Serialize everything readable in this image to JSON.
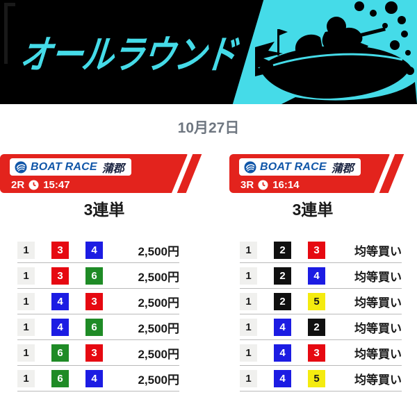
{
  "header": {
    "title": "オールラウンド",
    "accent_color": "#45dbe8",
    "bg_color": "#000000"
  },
  "date_label": "10月27日",
  "theme": {
    "banner_red": "#e3231d",
    "logo_blue": "#1056a8",
    "date_color": "#6e7680",
    "divider_color": "#b9b9b9"
  },
  "boat_colors": {
    "1": {
      "bg": "#f0f0ee",
      "fg": "#1a1a1a"
    },
    "2": {
      "bg": "#101010",
      "fg": "#ffffff"
    },
    "3": {
      "bg": "#e60911",
      "fg": "#ffffff"
    },
    "4": {
      "bg": "#1c1ce3",
      "fg": "#ffffff"
    },
    "5": {
      "bg": "#f4eb0f",
      "fg": "#1a1a1a"
    },
    "6": {
      "bg": "#1f8b26",
      "fg": "#ffffff"
    }
  },
  "races": [
    {
      "logo": {
        "brand": "BOAT RACE",
        "venue": "蒲郡"
      },
      "race_no": "2R",
      "time": "15:47",
      "bet_type": "3連単",
      "rows": [
        {
          "combo": [
            "1",
            "3",
            "4"
          ],
          "label": "2,500円"
        },
        {
          "combo": [
            "1",
            "3",
            "6"
          ],
          "label": "2,500円"
        },
        {
          "combo": [
            "1",
            "4",
            "3"
          ],
          "label": "2,500円"
        },
        {
          "combo": [
            "1",
            "4",
            "6"
          ],
          "label": "2,500円"
        },
        {
          "combo": [
            "1",
            "6",
            "3"
          ],
          "label": "2,500円"
        },
        {
          "combo": [
            "1",
            "6",
            "4"
          ],
          "label": "2,500円"
        }
      ]
    },
    {
      "logo": {
        "brand": "BOAT RACE",
        "venue": "蒲郡"
      },
      "race_no": "3R",
      "time": "16:14",
      "bet_type": "3連単",
      "rows": [
        {
          "combo": [
            "1",
            "2",
            "3"
          ],
          "label": "均等買い"
        },
        {
          "combo": [
            "1",
            "2",
            "4"
          ],
          "label": "均等買い"
        },
        {
          "combo": [
            "1",
            "2",
            "5"
          ],
          "label": "均等買い"
        },
        {
          "combo": [
            "1",
            "4",
            "2"
          ],
          "label": "均等買い"
        },
        {
          "combo": [
            "1",
            "4",
            "3"
          ],
          "label": "均等買い"
        },
        {
          "combo": [
            "1",
            "4",
            "5"
          ],
          "label": "均等買い"
        }
      ]
    }
  ]
}
